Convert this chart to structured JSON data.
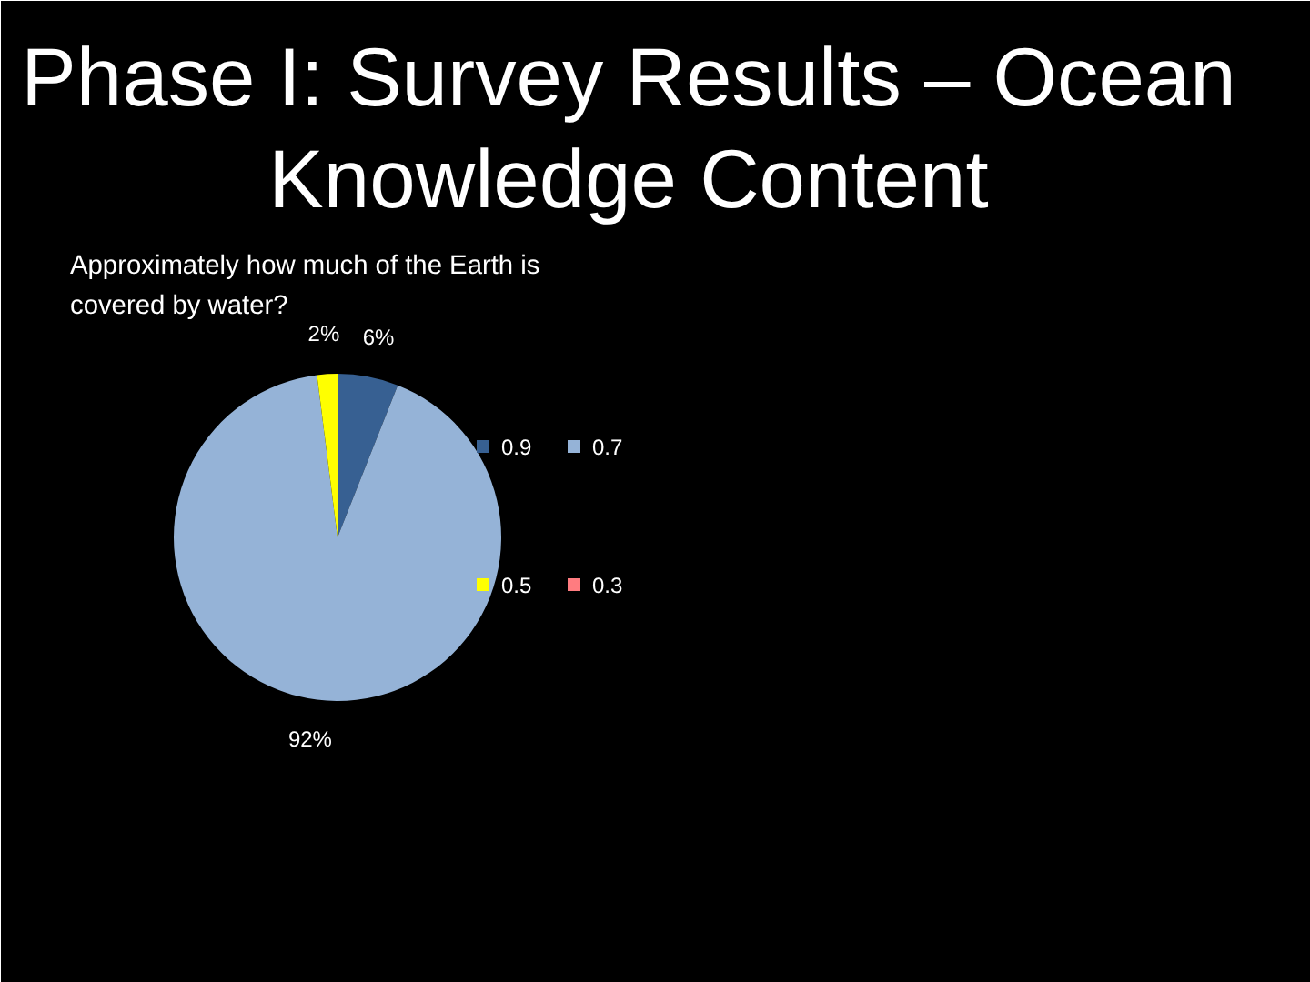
{
  "chart_data": {
    "type": "pie",
    "title": "Phase I: Survey Results – Ocean Knowledge Content",
    "subtitle": "Approximately how much of the Earth is covered by water?",
    "categories": [
      "0.9",
      "0.7",
      "0.5",
      "0.3"
    ],
    "values": [
      6,
      92,
      2,
      0
    ],
    "colors": [
      "#376092",
      "#95b3d7",
      "#ffff00",
      "#ff7c80"
    ],
    "value_labels": [
      "6%",
      "92%",
      "2%",
      null
    ],
    "legend": "right"
  }
}
